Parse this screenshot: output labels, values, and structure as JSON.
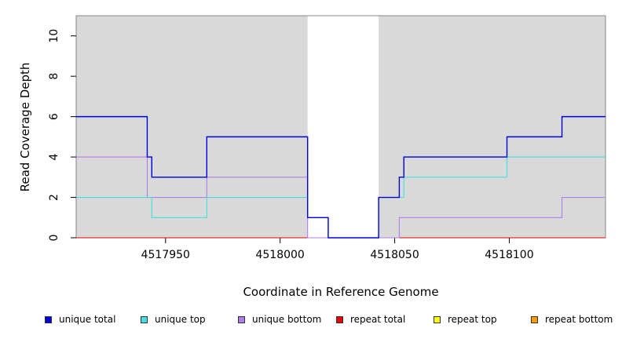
{
  "chart_data": {
    "type": "line",
    "xlabel": "Coordinate in Reference Genome",
    "ylabel": "Read Coverage Depth",
    "xlim": [
      4517911,
      4518142
    ],
    "ylim": [
      0,
      11
    ],
    "x_ticks": [
      4517950,
      4518000,
      4518050,
      4518100
    ],
    "y_ticks": [
      0,
      2,
      4,
      6,
      8,
      10
    ],
    "background_color": "#d9d9d9",
    "shaded_regions": [
      [
        4517911,
        4518012
      ],
      [
        4518043,
        4518142
      ]
    ],
    "grid": false,
    "legend_position": "bottom",
    "series": [
      {
        "name": "unique total",
        "color": "#0000dd",
        "x": [
          4517911,
          4517942,
          4517944,
          4517968,
          4518012,
          4518021,
          4518043,
          4518052,
          4518054,
          4518099,
          4518123,
          4518142
        ],
        "y": [
          6,
          4,
          3,
          5,
          1,
          0,
          2,
          3,
          4,
          5,
          6,
          6
        ]
      },
      {
        "name": "unique top",
        "color": "#44dddd",
        "x": [
          4517911,
          4517944,
          4517968,
          4518012,
          4518021,
          4518043,
          4518054,
          4518099,
          4518142
        ],
        "y": [
          2,
          1,
          2,
          1,
          0,
          2,
          3,
          4,
          4
        ]
      },
      {
        "name": "unique bottom",
        "color": "#b07ee8",
        "x": [
          4517911,
          4517942,
          4517968,
          4518012,
          4518052,
          4518123,
          4518142
        ],
        "y": [
          4,
          2,
          3,
          0,
          1,
          2,
          2
        ]
      },
      {
        "name": "repeat total",
        "color": "#ee0000",
        "x": [
          4517911,
          4518142
        ],
        "y": [
          0,
          0
        ]
      },
      {
        "name": "repeat top",
        "color": "#ffff00",
        "x": [
          4517911,
          4518142
        ],
        "y": [
          0,
          0
        ]
      },
      {
        "name": "repeat bottom",
        "color": "#ff9900",
        "x": [
          4517911,
          4518142
        ],
        "y": [
          0,
          0
        ]
      }
    ]
  }
}
